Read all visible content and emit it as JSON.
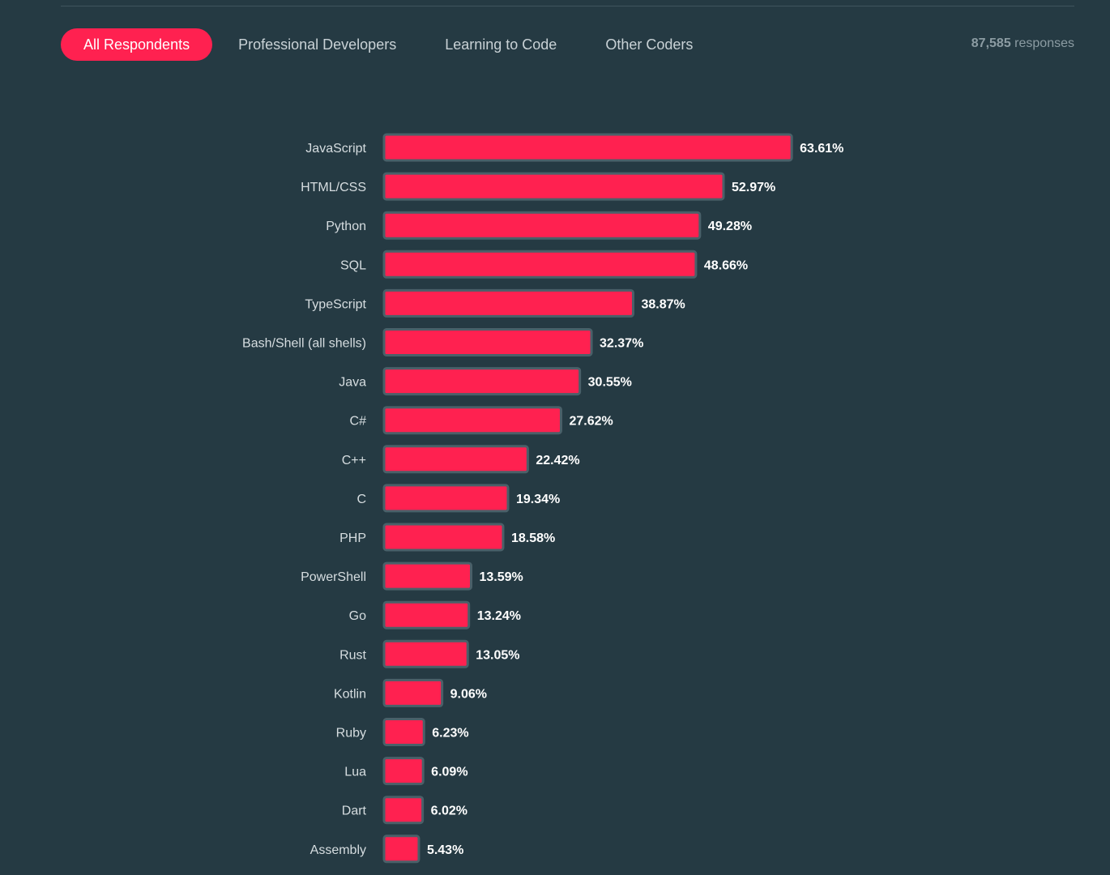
{
  "tabs": [
    {
      "label": "All Respondents",
      "active": true
    },
    {
      "label": "Professional Developers",
      "active": false
    },
    {
      "label": "Learning to Code",
      "active": false
    },
    {
      "label": "Other Coders",
      "active": false
    }
  ],
  "responses": {
    "count": "87,585",
    "label": "responses"
  },
  "colors": {
    "background": "#253a43",
    "bar": "#ff2150",
    "bar_border": "#4a6069",
    "active_tab": "#ff2150"
  },
  "chart_data": {
    "type": "bar",
    "orientation": "horizontal",
    "categories": [
      "JavaScript",
      "HTML/CSS",
      "Python",
      "SQL",
      "TypeScript",
      "Bash/Shell (all shells)",
      "Java",
      "C#",
      "C++",
      "C",
      "PHP",
      "PowerShell",
      "Go",
      "Rust",
      "Kotlin",
      "Ruby",
      "Lua",
      "Dart",
      "Assembly"
    ],
    "values": [
      63.61,
      52.97,
      49.28,
      48.66,
      38.87,
      32.37,
      30.55,
      27.62,
      22.42,
      19.34,
      18.58,
      13.59,
      13.24,
      13.05,
      9.06,
      6.23,
      6.09,
      6.02,
      5.43
    ],
    "value_labels": [
      "63.61%",
      "52.97%",
      "49.28%",
      "48.66%",
      "38.87%",
      "32.37%",
      "30.55%",
      "27.62%",
      "22.42%",
      "19.34%",
      "18.58%",
      "13.59%",
      "13.24%",
      "13.05%",
      "9.06%",
      "6.23%",
      "6.09%",
      "6.02%",
      "5.43%"
    ],
    "unit": "%",
    "grid": false,
    "legend": "none"
  }
}
